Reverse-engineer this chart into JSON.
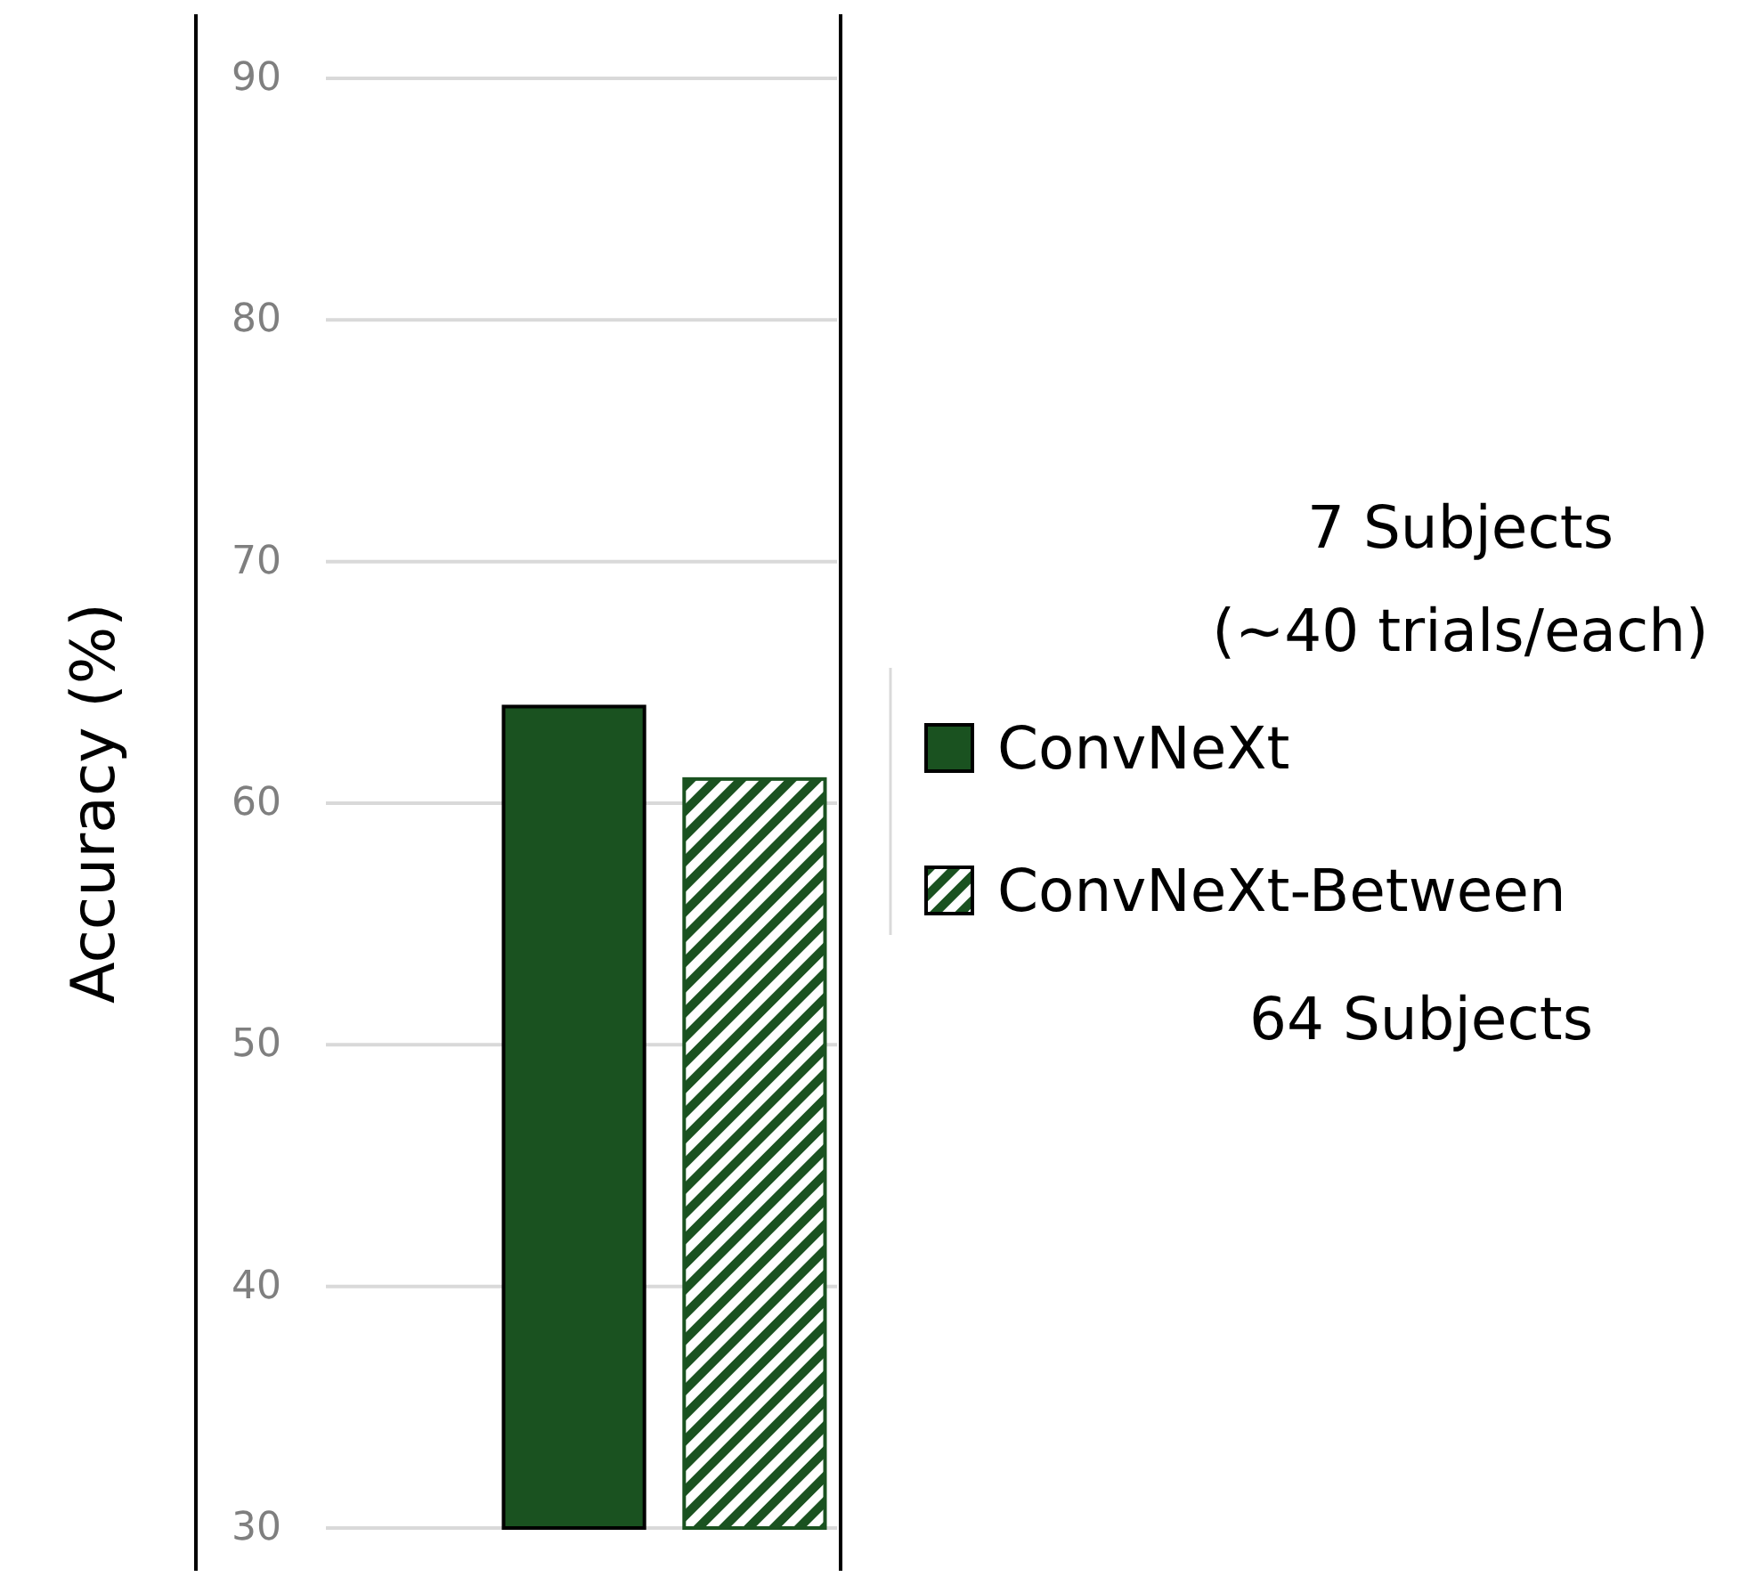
{
  "chart_data": {
    "type": "bar",
    "ylabel": "Accuracy (%)",
    "categories": [
      null
    ],
    "series": [
      {
        "name": "ConvNeXt",
        "color": "#1a5220",
        "values": [
          64
        ]
      },
      {
        "name": "ConvNeXt-Between",
        "color": "#1a5220",
        "values": [
          61
        ]
      }
    ],
    "ylim": [
      30,
      90
    ],
    "yticks": [
      30,
      40,
      50,
      60,
      70,
      80,
      90
    ],
    "grid": "y",
    "legend": "right",
    "annotations": [
      "7 Subjects\n(~40 trials/each)",
      "64 Subjects"
    ]
  }
}
